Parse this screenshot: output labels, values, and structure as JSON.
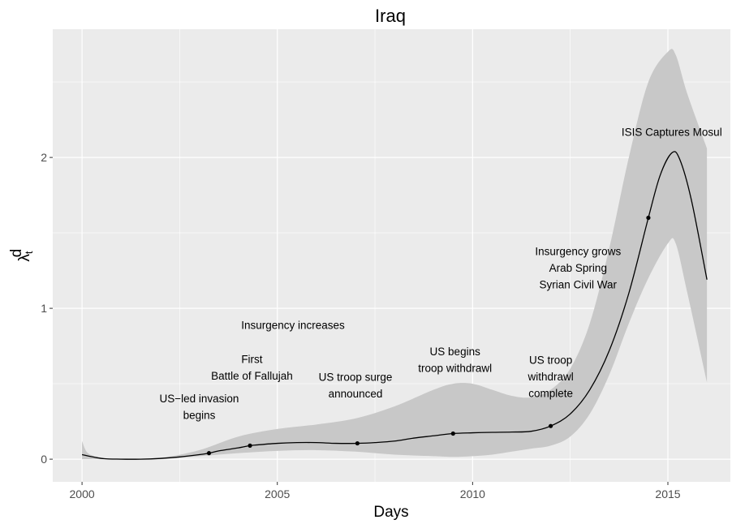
{
  "chart_data": {
    "type": "line",
    "title": "Iraq",
    "xlabel": "Days",
    "ylabel": "λ",
    "ylabel_sup": "d",
    "ylabel_sub": "t",
    "xlim": [
      1999.25,
      2016.6
    ],
    "ylim": [
      -0.15,
      2.85
    ],
    "x_ticks": [
      2000,
      2005,
      2010,
      2015
    ],
    "x_tick_labels": [
      "2000",
      "2005",
      "2010",
      "2015"
    ],
    "y_ticks": [
      0,
      1,
      2
    ],
    "y_tick_labels": [
      "0",
      "1",
      "2"
    ],
    "grid": true,
    "colors": {
      "panel": "#ebebeb",
      "grid_major": "#ffffff",
      "band": "#c8c8c8",
      "line": "#000000",
      "tick_text": "#4d4d4d"
    },
    "series": [
      {
        "role": "estimate",
        "x": [
          2000.0,
          2000.5,
          2001.0,
          2001.5,
          2002.0,
          2002.5,
          2003.0,
          2003.25,
          2003.5,
          2004.0,
          2004.3,
          2004.5,
          2005.0,
          2005.5,
          2006.0,
          2006.5,
          2007.05,
          2007.5,
          2008.0,
          2008.5,
          2009.0,
          2009.5,
          2010.0,
          2010.5,
          2011.0,
          2011.5,
          2012.0,
          2012.5,
          2013.0,
          2013.5,
          2014.0,
          2014.5,
          2014.8,
          2015.1,
          2015.3,
          2015.6,
          2016.0
        ],
        "y": [
          0.03,
          0.005,
          0.0,
          0.0,
          0.005,
          0.015,
          0.03,
          0.04,
          0.055,
          0.075,
          0.09,
          0.095,
          0.105,
          0.11,
          0.11,
          0.105,
          0.105,
          0.11,
          0.12,
          0.14,
          0.155,
          0.17,
          0.175,
          0.178,
          0.18,
          0.185,
          0.22,
          0.3,
          0.46,
          0.72,
          1.1,
          1.6,
          1.88,
          2.03,
          1.99,
          1.72,
          1.19
        ]
      }
    ],
    "band": {
      "x": [
        2000.0,
        2000.15,
        2000.5,
        2001.0,
        2002.0,
        2003.0,
        2004.0,
        2005.0,
        2006.0,
        2007.0,
        2008.0,
        2009.0,
        2009.5,
        2010.0,
        2010.5,
        2011.0,
        2011.5,
        2012.0,
        2012.5,
        2013.0,
        2013.5,
        2014.0,
        2014.5,
        2015.0,
        2015.2,
        2015.5,
        2016.0
      ],
      "upper": [
        0.12,
        0.04,
        0.01,
        0.005,
        0.01,
        0.06,
        0.15,
        0.2,
        0.23,
        0.27,
        0.35,
        0.46,
        0.5,
        0.5,
        0.46,
        0.42,
        0.41,
        0.46,
        0.6,
        0.9,
        1.4,
        2.0,
        2.5,
        2.7,
        2.68,
        2.42,
        2.06
      ],
      "lower": [
        0.0,
        0.0,
        0.0,
        0.0,
        0.0,
        0.02,
        0.04,
        0.055,
        0.06,
        0.05,
        0.03,
        0.02,
        0.015,
        0.02,
        0.03,
        0.05,
        0.07,
        0.09,
        0.15,
        0.3,
        0.56,
        0.9,
        1.2,
        1.43,
        1.43,
        1.1,
        0.51
      ]
    },
    "event_points": [
      {
        "x": 2003.25,
        "y": 0.04
      },
      {
        "x": 2004.3,
        "y": 0.09
      },
      {
        "x": 2007.05,
        "y": 0.105
      },
      {
        "x": 2009.5,
        "y": 0.17
      },
      {
        "x": 2012.0,
        "y": 0.22
      },
      {
        "x": 2014.5,
        "y": 1.6
      }
    ],
    "annotations": [
      {
        "lines": [
          "US−led invasion",
          "begins"
        ],
        "x": 2003.0,
        "y": 0.35
      },
      {
        "lines": [
          "First",
          "Battle of Fallujah"
        ],
        "x": 2004.35,
        "y": 0.61
      },
      {
        "lines": [
          "Insurgency increases"
        ],
        "x": 2005.4,
        "y": 0.89
      },
      {
        "lines": [
          "US troop surge",
          "announced"
        ],
        "x": 2007.0,
        "y": 0.49
      },
      {
        "lines": [
          "US begins",
          "troop withdrawl"
        ],
        "x": 2009.55,
        "y": 0.66
      },
      {
        "lines": [
          "US troop",
          "withdrawl",
          "complete"
        ],
        "x": 2012.0,
        "y": 0.55
      },
      {
        "lines": [
          "Insurgency grows",
          "Arab Spring",
          "Syrian Civil War"
        ],
        "x": 2012.7,
        "y": 1.27
      },
      {
        "lines": [
          "ISIS Captures Mosul"
        ],
        "x": 2015.1,
        "y": 2.17
      }
    ]
  }
}
